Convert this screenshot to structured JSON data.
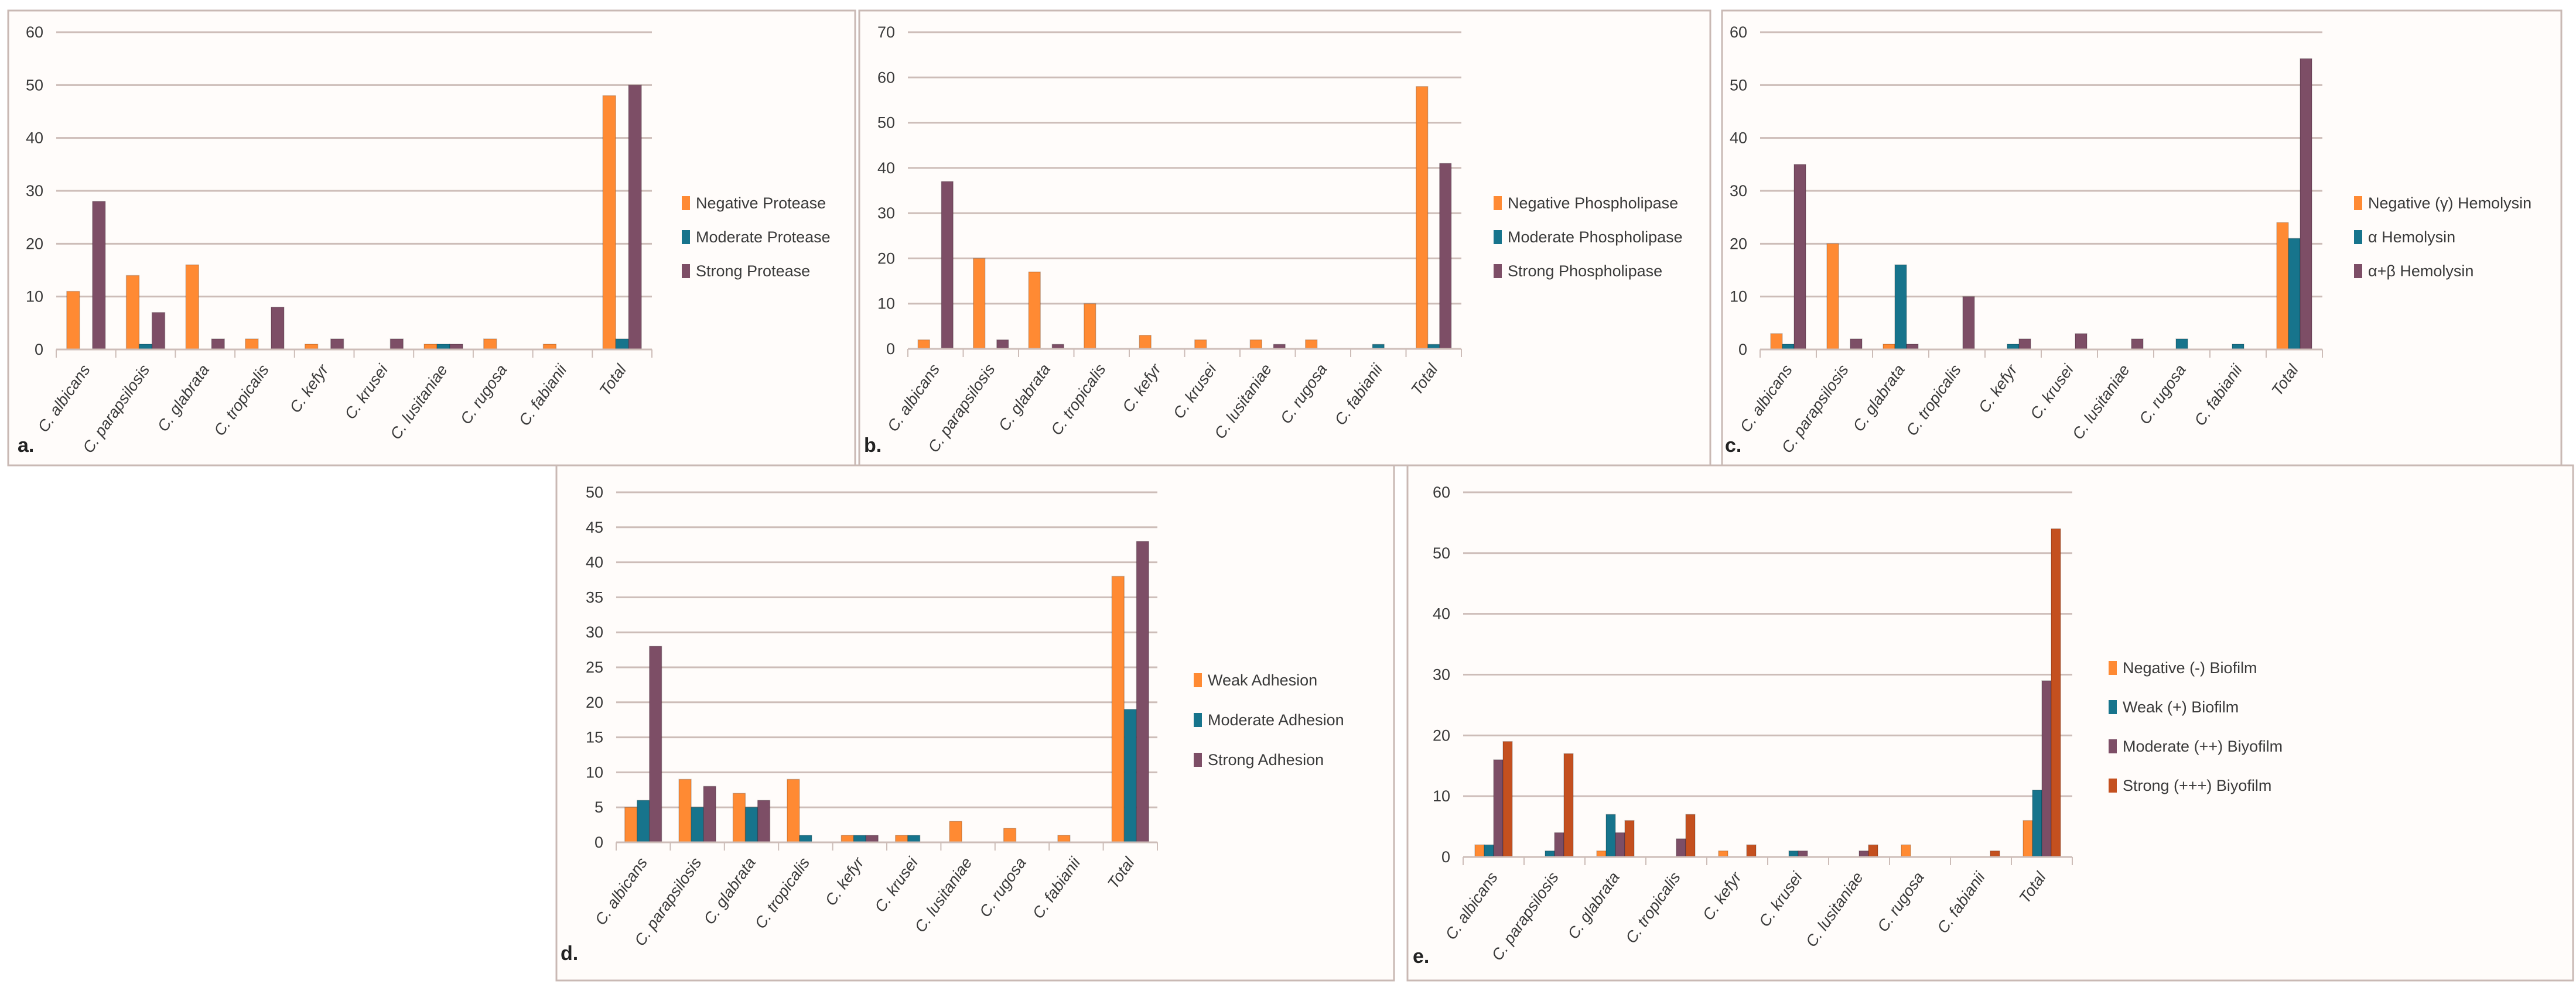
{
  "colors": {
    "orange": "#FF8A33",
    "teal": "#17748C",
    "purple": "#7D4E66",
    "rust": "#C4501F",
    "grid": "#CDBDB8",
    "panel_bg": "#FFFCFA",
    "border": "#C9B9B4"
  },
  "chart_data": [
    {
      "type": "bar",
      "panel_label": "a.",
      "title": "",
      "xlabel": "",
      "ylabel": "",
      "ylim": [
        0,
        60
      ],
      "ystep": 10,
      "grid": true,
      "legend_position": "right",
      "categories": [
        "C. albicans",
        "C. parapsilosis",
        "C. glabrata",
        "C. tropicalis",
        "C. kefyr",
        "C. krusei",
        "C. lusitaniae",
        "C. rugosa",
        "C. fabianii",
        "Total"
      ],
      "series": [
        {
          "name": "Negative Protease",
          "color": "#FF8A33",
          "values": [
            11,
            14,
            16,
            2,
            1,
            0,
            1,
            2,
            1,
            48
          ]
        },
        {
          "name": "Moderate Protease",
          "color": "#17748C",
          "values": [
            0,
            1,
            0,
            0,
            0,
            0,
            1,
            0,
            0,
            2
          ]
        },
        {
          "name": "Strong Protease",
          "color": "#7D4E66",
          "values": [
            28,
            7,
            2,
            8,
            2,
            2,
            1,
            0,
            0,
            50
          ]
        }
      ]
    },
    {
      "type": "bar",
      "panel_label": "b.",
      "title": "",
      "xlabel": "",
      "ylabel": "",
      "ylim": [
        0,
        70
      ],
      "ystep": 10,
      "grid": true,
      "legend_position": "right",
      "categories": [
        "C. albicans",
        "C. parapsilosis",
        "C. glabrata",
        "C. tropicalis",
        "C. kefyr",
        "C. krusei",
        "C. lusitaniae",
        "C. rugosa",
        "C. fabianii",
        "Total"
      ],
      "series": [
        {
          "name": "Negative Phospholipase",
          "color": "#FF8A33",
          "values": [
            2,
            20,
            17,
            10,
            3,
            2,
            2,
            2,
            0,
            58
          ]
        },
        {
          "name": "Moderate Phospholipase",
          "color": "#17748C",
          "values": [
            0,
            0,
            0,
            0,
            0,
            0,
            0,
            0,
            1,
            1
          ]
        },
        {
          "name": "Strong Phospholipase",
          "color": "#7D4E66",
          "values": [
            37,
            2,
            1,
            0,
            0,
            0,
            1,
            0,
            0,
            41
          ]
        }
      ]
    },
    {
      "type": "bar",
      "panel_label": "c.",
      "title": "",
      "xlabel": "",
      "ylabel": "",
      "ylim": [
        0,
        60
      ],
      "ystep": 10,
      "grid": true,
      "legend_position": "right",
      "categories": [
        "C. albicans",
        "C. parapsilosis",
        "C. glabrata",
        "C. tropicalis",
        "C. kefyr",
        "C. krusei",
        "C. lusitaniae",
        "C. rugosa",
        "C. fabianii",
        "Total"
      ],
      "series": [
        {
          "name": "Negative (γ) Hemolysin",
          "color": "#FF8A33",
          "values": [
            3,
            20,
            1,
            0,
            0,
            0,
            0,
            0,
            0,
            24
          ]
        },
        {
          "name": "α Hemolysin",
          "color": "#17748C",
          "values": [
            1,
            0,
            16,
            0,
            1,
            0,
            0,
            2,
            1,
            21
          ]
        },
        {
          "name": "α+β Hemolysin",
          "color": "#7D4E66",
          "values": [
            35,
            2,
            1,
            10,
            2,
            3,
            2,
            0,
            0,
            55
          ]
        }
      ]
    },
    {
      "type": "bar",
      "panel_label": "d.",
      "title": "",
      "xlabel": "",
      "ylabel": "",
      "ylim": [
        0,
        50
      ],
      "ystep": 5,
      "grid": true,
      "legend_position": "right",
      "categories": [
        "C. albicans",
        "C. parapsilosis",
        "C. glabrata",
        "C. tropicalis",
        "C. kefyr",
        "C. krusei",
        "C. lusitaniae",
        "C. rugosa",
        "C. fabianii",
        "Total"
      ],
      "series": [
        {
          "name": "Weak Adhesion",
          "color": "#FF8A33",
          "values": [
            5,
            9,
            7,
            9,
            1,
            1,
            3,
            2,
            1,
            38
          ]
        },
        {
          "name": "Moderate Adhesion",
          "color": "#17748C",
          "values": [
            6,
            5,
            5,
            1,
            1,
            1,
            0,
            0,
            0,
            19
          ]
        },
        {
          "name": "Strong Adhesion",
          "color": "#7D4E66",
          "values": [
            28,
            8,
            6,
            0,
            1,
            0,
            0,
            0,
            0,
            43
          ]
        }
      ]
    },
    {
      "type": "bar",
      "panel_label": "e.",
      "title": "",
      "xlabel": "",
      "ylabel": "",
      "ylim": [
        0,
        60
      ],
      "ystep": 10,
      "grid": true,
      "legend_position": "right",
      "categories": [
        "C. albicans",
        "C. parapsilosis",
        "C. glabrata",
        "C. tropicalis",
        "C. kefyr",
        "C. krusei",
        "C. lusitaniae",
        "C. rugosa",
        "C. fabianii",
        "Total"
      ],
      "series": [
        {
          "name": "Negative (-) Biofilm",
          "color": "#FF8A33",
          "values": [
            2,
            0,
            1,
            0,
            1,
            0,
            0,
            2,
            0,
            6
          ]
        },
        {
          "name": "Weak (+) Biofilm",
          "color": "#17748C",
          "values": [
            2,
            1,
            7,
            0,
            0,
            1,
            0,
            0,
            0,
            11
          ]
        },
        {
          "name": "Moderate (++) Biyofilm",
          "color": "#7D4E66",
          "values": [
            16,
            4,
            4,
            3,
            0,
            1,
            1,
            0,
            0,
            29
          ]
        },
        {
          "name": "Strong (+++) Biyofilm",
          "color": "#C4501F",
          "values": [
            19,
            17,
            6,
            7,
            2,
            0,
            2,
            0,
            1,
            54
          ]
        }
      ]
    }
  ]
}
